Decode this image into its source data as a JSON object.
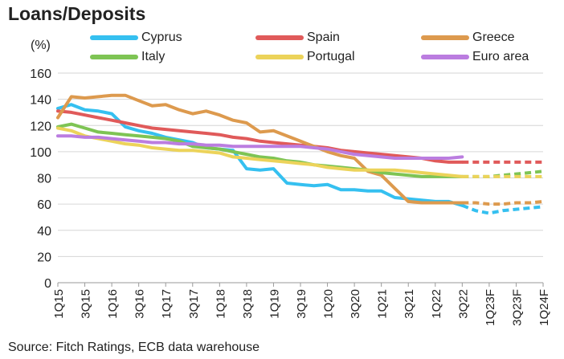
{
  "page": {
    "title": "Loans/Deposits",
    "source": "Source: Fitch Ratings, ECB data warehouse"
  },
  "chart_data": {
    "type": "line",
    "title": "Loans/Deposits",
    "xlabel": "",
    "ylabel": "(%)",
    "ylim": [
      0,
      160
    ],
    "yticks": [
      0,
      20,
      40,
      60,
      80,
      100,
      120,
      140,
      160
    ],
    "grid": true,
    "legend_position": "top",
    "x_tick_labels": [
      "1Q15",
      "3Q15",
      "1Q16",
      "3Q16",
      "1Q17",
      "3Q17",
      "1Q18",
      "3Q18",
      "1Q19",
      "3Q19",
      "1Q20",
      "3Q20",
      "1Q21",
      "3Q21",
      "1Q22",
      "3Q22",
      "1Q23F",
      "3Q23F",
      "1Q24F"
    ],
    "x": [
      "1Q15",
      "2Q15",
      "3Q15",
      "4Q15",
      "1Q16",
      "2Q16",
      "3Q16",
      "4Q16",
      "1Q17",
      "2Q17",
      "3Q17",
      "4Q17",
      "1Q18",
      "2Q18",
      "3Q18",
      "4Q18",
      "1Q19",
      "2Q19",
      "3Q19",
      "4Q19",
      "1Q20",
      "2Q20",
      "3Q20",
      "4Q20",
      "1Q21",
      "2Q21",
      "3Q21",
      "4Q21",
      "1Q22",
      "2Q22",
      "3Q22",
      "4Q22",
      "1Q23F",
      "2Q23F",
      "3Q23F",
      "4Q23F",
      "1Q24F"
    ],
    "forecast_start": "3Q22",
    "series": [
      {
        "name": "Cyprus",
        "color": "#35c0f0",
        "values": [
          133,
          136,
          132,
          131,
          129,
          119,
          116,
          114,
          111,
          109,
          107,
          103,
          102,
          101,
          87,
          86,
          87,
          76,
          75,
          74,
          75,
          71,
          71,
          70,
          70,
          65,
          64,
          63,
          62,
          62,
          59,
          55,
          53,
          55,
          56,
          57,
          58
        ]
      },
      {
        "name": "Spain",
        "color": "#e05a5a",
        "values": [
          131,
          130,
          128,
          126,
          124,
          122,
          120,
          118,
          117,
          116,
          115,
          114,
          113,
          111,
          110,
          108,
          107,
          106,
          105,
          104,
          103,
          101,
          100,
          99,
          98,
          97,
          96,
          95,
          93,
          92,
          92,
          92,
          92,
          92,
          92,
          92,
          92
        ]
      },
      {
        "name": "Greece",
        "color": "#dd9a4e",
        "values": [
          126,
          142,
          141,
          142,
          143,
          143,
          139,
          135,
          136,
          132,
          129,
          131,
          128,
          124,
          122,
          115,
          116,
          112,
          108,
          104,
          100,
          97,
          95,
          85,
          82,
          72,
          62,
          61,
          61,
          61,
          61,
          61,
          60,
          60,
          61,
          61,
          62
        ]
      },
      {
        "name": "Italy",
        "color": "#7ec454",
        "values": [
          119,
          121,
          118,
          115,
          114,
          113,
          112,
          111,
          110,
          108,
          104,
          103,
          102,
          100,
          98,
          96,
          95,
          93,
          92,
          90,
          89,
          88,
          87,
          86,
          84,
          83,
          82,
          81,
          81,
          81,
          81,
          81,
          81,
          82,
          83,
          84,
          85
        ]
      },
      {
        "name": "Portugal",
        "color": "#ecd35a",
        "values": [
          118,
          116,
          112,
          110,
          108,
          106,
          105,
          103,
          102,
          101,
          101,
          100,
          99,
          96,
          95,
          94,
          93,
          92,
          91,
          90,
          88,
          87,
          86,
          86,
          86,
          86,
          85,
          84,
          83,
          82,
          81,
          81,
          81,
          81,
          81,
          81,
          81
        ]
      },
      {
        "name": "Euro area",
        "color": "#bb7de0",
        "values": [
          112,
          112,
          111,
          111,
          110,
          109,
          108,
          107,
          107,
          106,
          106,
          105,
          105,
          104,
          104,
          104,
          104,
          104,
          104,
          103,
          102,
          100,
          98,
          97,
          96,
          95,
          95,
          95,
          95,
          95,
          96,
          null,
          null,
          null,
          null,
          null,
          null
        ]
      }
    ]
  }
}
